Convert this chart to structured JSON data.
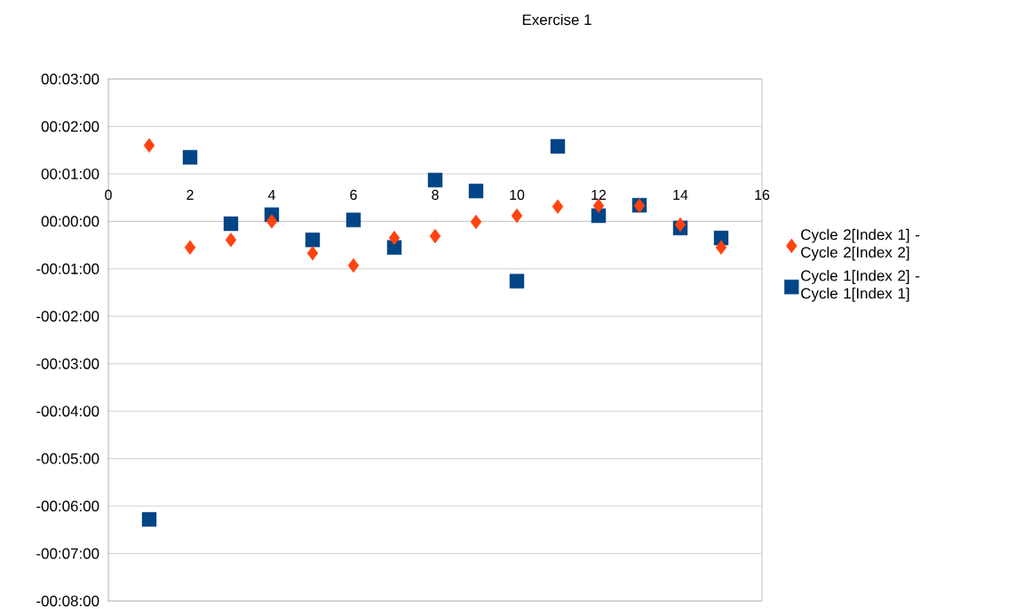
{
  "chart_data": {
    "type": "scatter",
    "title": "Exercise 1",
    "x": [
      1,
      2,
      3,
      4,
      5,
      6,
      7,
      8,
      9,
      10,
      11,
      12,
      13,
      14,
      15
    ],
    "series": [
      {
        "name": "Cycle 2[Index 1] - Cycle 2[Index 2]",
        "color": "#ff420e",
        "marker": "diamond",
        "values": [
          1.6,
          -0.55,
          -0.39,
          0,
          -0.67,
          -0.93,
          -0.35,
          -0.31,
          -0.01,
          0.12,
          0.31,
          0.33,
          0.33,
          -0.07,
          -0.55
        ]
      },
      {
        "name": "Cycle 1[Index 2] - Cycle 1[Index 1]",
        "color": "#004586",
        "marker": "square",
        "values": [
          -6.28,
          1.35,
          -0.05,
          0.14,
          -0.39,
          0.03,
          -0.55,
          0.87,
          0.64,
          -1.26,
          1.58,
          0.12,
          0.34,
          -0.14,
          -0.35
        ]
      }
    ],
    "xlim": [
      0,
      16
    ],
    "xticks": [
      0,
      2,
      4,
      6,
      8,
      10,
      12,
      14,
      16
    ],
    "ylim": [
      -8,
      3
    ],
    "yticks": [
      {
        "value": 3,
        "label": "00:03:00"
      },
      {
        "value": 2,
        "label": "00:02:00"
      },
      {
        "value": 1,
        "label": "00:01:00"
      },
      {
        "value": 0,
        "label": "00:00:00"
      },
      {
        "value": -1,
        "label": "-00:01:00"
      },
      {
        "value": -2,
        "label": "-00:02:00"
      },
      {
        "value": -3,
        "label": "-00:03:00"
      },
      {
        "value": -4,
        "label": "-00:04:00"
      },
      {
        "value": -5,
        "label": "-00:05:00"
      },
      {
        "value": -6,
        "label": "-00:06:00"
      },
      {
        "value": -7,
        "label": "-00:07:00"
      },
      {
        "value": -8,
        "label": "-00:08:00"
      }
    ],
    "grid": "y",
    "legend": "right"
  }
}
